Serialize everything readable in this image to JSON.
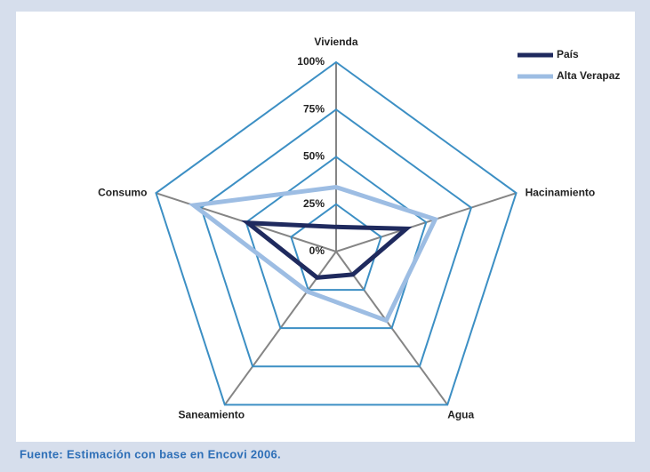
{
  "chart_data": {
    "type": "radar",
    "categories": [
      "Vivienda",
      "Hacinamiento",
      "Agua",
      "Saneamiento",
      "Consumo"
    ],
    "series": [
      {
        "name": "País",
        "color": "#1f2a5e",
        "values": [
          13,
          39,
          15,
          17,
          49
        ]
      },
      {
        "name": "Alta Verapaz",
        "color": "#9dbde3",
        "values": [
          34,
          55,
          45,
          26,
          79
        ]
      }
    ],
    "rlim": [
      0,
      100
    ],
    "rticks": [
      {
        "value": 0,
        "label": "0%"
      },
      {
        "value": 25,
        "label": "25%"
      },
      {
        "value": 50,
        "label": "50%"
      },
      {
        "value": 75,
        "label": "75%"
      },
      {
        "value": 100,
        "label": "100%"
      }
    ],
    "grid_color": "#3c8fc4",
    "spoke_color": "#858585",
    "legend": "top-right",
    "source": "Fuente: Estimación con base en Encovi 2006."
  }
}
